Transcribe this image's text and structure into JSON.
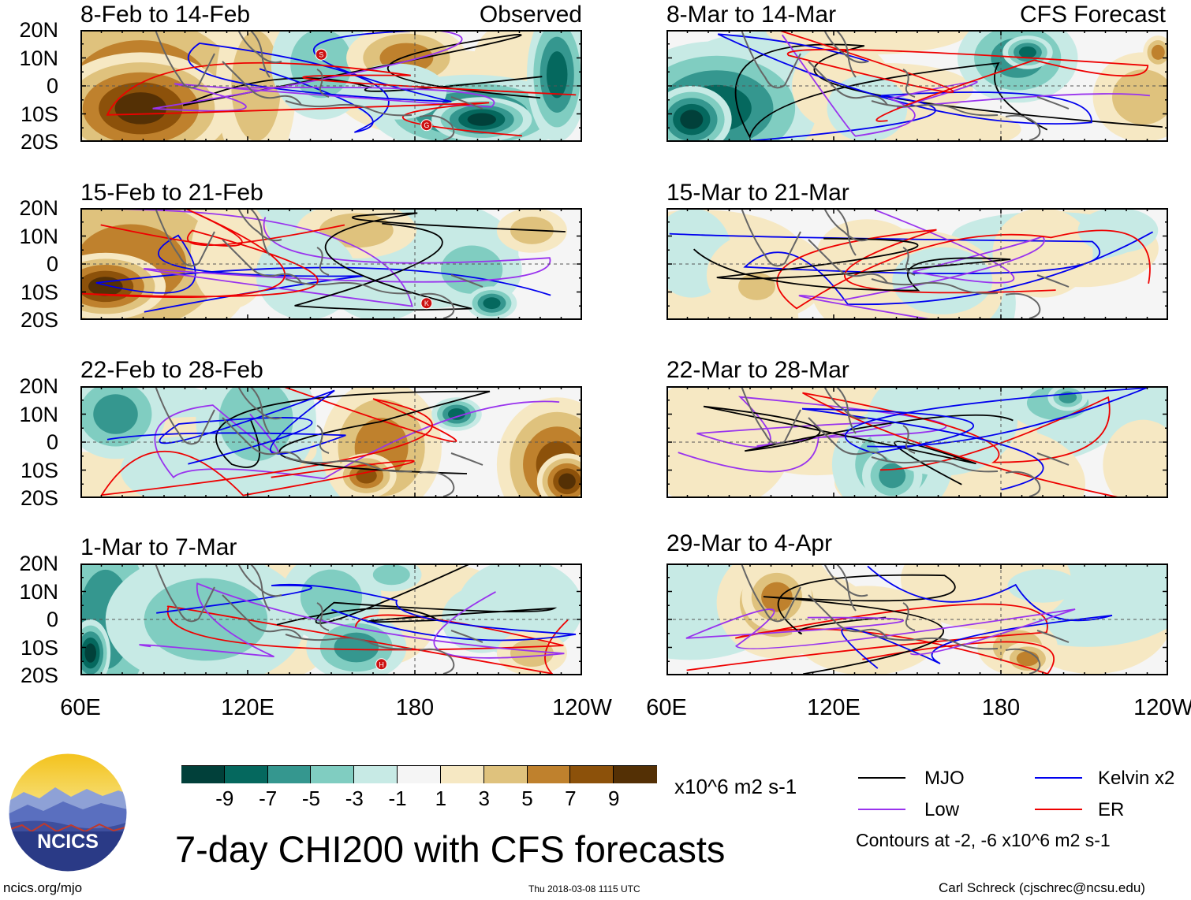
{
  "chart_data": {
    "type": "heatmap",
    "title": "7-day CHI200 with CFS forecasts",
    "variable": "CHI200",
    "units": "x10^6 m2 s-1",
    "y_ticks": [
      "20N",
      "10N",
      "0",
      "10S",
      "20S"
    ],
    "x_ticks": [
      "60E",
      "120E",
      "180",
      "120W"
    ],
    "xlim": [
      "60E",
      "120W"
    ],
    "ylim": [
      "20S",
      "20N"
    ],
    "columns": [
      {
        "tag": "Observed",
        "panels": [
          {
            "period": "8-Feb to 14-Feb",
            "storms": [
              "S",
              "G"
            ]
          },
          {
            "period": "15-Feb to 21-Feb",
            "storms": [
              "K"
            ]
          },
          {
            "period": "22-Feb to 28-Feb",
            "storms": []
          },
          {
            "period": "1-Mar to 7-Mar",
            "storms": [
              "H"
            ]
          }
        ]
      },
      {
        "tag": "CFS Forecast",
        "panels": [
          {
            "period": "8-Mar to 14-Mar",
            "storms": []
          },
          {
            "period": "15-Mar to 21-Mar",
            "storms": []
          },
          {
            "period": "22-Mar to 28-Mar",
            "storms": []
          },
          {
            "period": "29-Mar to 4-Apr",
            "storms": []
          }
        ]
      }
    ],
    "colorbar": {
      "labels": [
        "-9",
        "-7",
        "-5",
        "-3",
        "-1",
        "1",
        "3",
        "5",
        "7",
        "9"
      ],
      "colors": [
        "#01403a",
        "#05685e",
        "#35978f",
        "#80cdc1",
        "#c7eae5",
        "#f5f5f5",
        "#f6e8c3",
        "#dfc27d",
        "#bf812d",
        "#8c510a",
        "#543005"
      ]
    },
    "contour_legend": [
      {
        "label": "MJO",
        "color": "#000000"
      },
      {
        "label": "Kelvin x2",
        "color": "#0000ee"
      },
      {
        "label": "Low",
        "color": "#9933ee"
      },
      {
        "label": "ER",
        "color": "#ee0000"
      }
    ],
    "contour_note": "Contours at -2, -6 x10^6 m2 s-1"
  },
  "footer": {
    "logo_text": "NCICS",
    "url": "ncics.org/mjo",
    "timestamp": "Thu 2018-03-08 1115 UTC",
    "author": "Carl Schreck (cjschrec@ncsu.edu)"
  }
}
